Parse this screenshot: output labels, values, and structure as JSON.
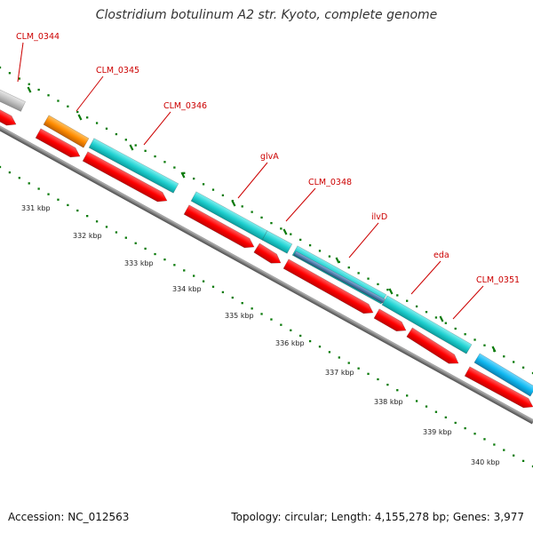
{
  "title": "Clostridium botulinum A2 str. Kyoto, complete genome",
  "footer": {
    "accession": "Accession: NC_012563",
    "summary": "Topology: circular; Length: 4,155,278 bp; Genes: 3,977"
  },
  "colors": {
    "cds": "#ff0000",
    "gene_teal": "#20d0d0",
    "gene_blue": "#10b8f0",
    "gene_orange": "#ff8c00",
    "gene_gray": "#c0c0c0",
    "gene_slate": "#5080b0",
    "label": "#cc0000",
    "tick": "#0a7a0a",
    "backbone": "#808080"
  },
  "ticks": [
    "331 kbp",
    "332 kbp",
    "333 kbp",
    "334 kbp",
    "335 kbp",
    "336 kbp",
    "337 kbp",
    "338 kbp",
    "339 kbp",
    "340 kbp"
  ],
  "gene_labels": [
    "CLM_0344",
    "CLM_0345",
    "CLM_0346",
    "glvA",
    "CLM_0348",
    "ilvD",
    "eda",
    "CLM_0351"
  ]
}
